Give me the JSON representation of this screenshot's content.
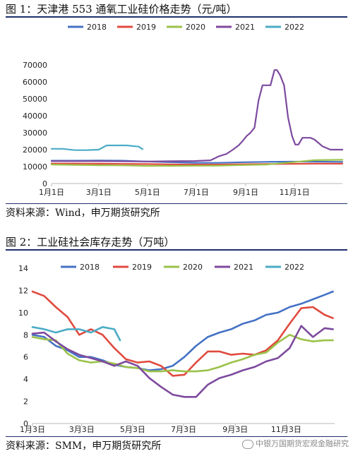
{
  "figure1": {
    "title": "图 1：天津港 553 通氧工业硅价格走势（元/吨）",
    "source": "资料来源：Wind，申万期货研究所"
  },
  "figure2": {
    "title": "图 2：工业硅社会库存走势（万吨）",
    "source": "资料来源：SMM，申万期货研究所"
  },
  "watermark": "中银万国期货宏观金融研究",
  "colors": {
    "2018": "#4472c4",
    "2019": "#e04a3f",
    "2020": "#9bc24a",
    "2021": "#7d4a9e",
    "2022": "#4bacc6",
    "rule": "#1f2f6e"
  },
  "chart_data": [
    {
      "type": "line",
      "title": "",
      "xlabel": "",
      "ylabel": "",
      "ylim": [
        0,
        80000
      ],
      "yticks": [
        0,
        10000,
        20000,
        30000,
        40000,
        50000,
        60000,
        70000
      ],
      "xlim": [
        1,
        365
      ],
      "xticks": [
        {
          "label": "1月1日",
          "x": 1
        },
        {
          "label": "3月1日",
          "x": 60
        },
        {
          "label": "5月1日",
          "x": 121
        },
        {
          "label": "7月1日",
          "x": 182
        },
        {
          "label": "9月1日",
          "x": 244
        },
        {
          "label": "11月1日",
          "x": 305
        }
      ],
      "grid": false,
      "legend": "top",
      "series": [
        {
          "name": "2018",
          "x": [
            1,
            30,
            60,
            90,
            120,
            150,
            180,
            210,
            240,
            270,
            300,
            330,
            365
          ],
          "y": [
            13500,
            13500,
            13600,
            13500,
            13000,
            12600,
            12200,
            12200,
            12600,
            12800,
            12900,
            12900,
            12800
          ]
        },
        {
          "name": "2019",
          "x": [
            1,
            30,
            60,
            90,
            120,
            150,
            180,
            210,
            240,
            270,
            300,
            330,
            365
          ],
          "y": [
            11800,
            11800,
            11700,
            11600,
            11500,
            11300,
            11200,
            11200,
            11400,
            11500,
            11600,
            11700,
            11700
          ]
        },
        {
          "name": "2020",
          "x": [
            1,
            30,
            60,
            90,
            120,
            150,
            180,
            210,
            240,
            270,
            300,
            330,
            365
          ],
          "y": [
            11200,
            11000,
            10800,
            10700,
            10400,
            10400,
            10500,
            10600,
            10900,
            11200,
            12400,
            13800,
            14000
          ]
        },
        {
          "name": "2021",
          "x": [
            1,
            60,
            120,
            150,
            180,
            200,
            210,
            220,
            228,
            235,
            240,
            245,
            250,
            255,
            260,
            265,
            270,
            275,
            280,
            283,
            287,
            292,
            297,
            302,
            306,
            310,
            315,
            320,
            325,
            330,
            340,
            350,
            365
          ],
          "y": [
            13200,
            13200,
            13000,
            13200,
            13300,
            13700,
            16000,
            17500,
            20000,
            22500,
            25000,
            28000,
            30000,
            33000,
            49000,
            58000,
            58000,
            58000,
            67000,
            67000,
            64000,
            58000,
            39000,
            28000,
            23000,
            23000,
            27000,
            27000,
            27000,
            26000,
            22000,
            20000,
            20000
          ]
        },
        {
          "name": "2022",
          "x": [
            1,
            15,
            30,
            45,
            60,
            70,
            80,
            95,
            110,
            115
          ],
          "y": [
            20500,
            20500,
            19700,
            19700,
            20000,
            22500,
            22500,
            22500,
            21800,
            20300
          ]
        }
      ]
    },
    {
      "type": "line",
      "title": "",
      "xlabel": "",
      "ylabel": "",
      "ylim": [
        0,
        14
      ],
      "yticks": [
        0,
        2,
        4,
        6,
        8,
        10,
        12,
        14
      ],
      "xlim": [
        3,
        365
      ],
      "xticks": [
        {
          "label": "1月3日",
          "x": 3
        },
        {
          "label": "3月3日",
          "x": 62
        },
        {
          "label": "5月3日",
          "x": 123
        },
        {
          "label": "7月3日",
          "x": 184
        },
        {
          "label": "9月3日",
          "x": 246
        },
        {
          "label": "11月3日",
          "x": 307
        }
      ],
      "grid": false,
      "legend": "top",
      "series": [
        {
          "name": "2018",
          "x": [
            3,
            17,
            31,
            45,
            59,
            73,
            87,
            101,
            115,
            129,
            143,
            157,
            171,
            185,
            199,
            213,
            227,
            241,
            255,
            269,
            283,
            297,
            311,
            325,
            339,
            353,
            363
          ],
          "y": [
            8.0,
            7.8,
            7.0,
            6.6,
            6.0,
            6.0,
            5.7,
            5.3,
            5.1,
            5.0,
            4.8,
            4.9,
            5.2,
            6.0,
            7.0,
            7.8,
            8.2,
            8.5,
            9.0,
            9.3,
            9.8,
            10.0,
            10.5,
            10.8,
            11.2,
            11.6,
            11.9
          ]
        },
        {
          "name": "2019",
          "x": [
            3,
            17,
            31,
            45,
            59,
            73,
            87,
            101,
            115,
            129,
            143,
            157,
            171,
            185,
            199,
            213,
            227,
            241,
            255,
            269,
            283,
            297,
            311,
            325,
            339,
            353,
            363
          ],
          "y": [
            11.9,
            11.5,
            10.5,
            9.6,
            8.0,
            8.5,
            8.0,
            6.8,
            5.8,
            5.5,
            5.6,
            5.2,
            4.3,
            4.4,
            5.5,
            6.5,
            6.5,
            6.2,
            6.3,
            6.2,
            6.6,
            7.5,
            9.0,
            10.4,
            10.5,
            9.8,
            9.5
          ]
        },
        {
          "name": "2020",
          "x": [
            3,
            17,
            31,
            45,
            59,
            73,
            87,
            101,
            115,
            129,
            143,
            157,
            171,
            185,
            199,
            213,
            227,
            241,
            255,
            269,
            283,
            297,
            311,
            325,
            339,
            353,
            363
          ],
          "y": [
            7.8,
            7.6,
            7.5,
            6.3,
            5.7,
            5.5,
            5.6,
            5.4,
            5.1,
            5.0,
            4.7,
            4.7,
            4.8,
            4.7,
            4.7,
            4.8,
            5.1,
            5.5,
            5.8,
            6.2,
            6.4,
            7.3,
            8.0,
            7.6,
            7.4,
            7.5,
            7.5
          ]
        },
        {
          "name": "2021",
          "x": [
            3,
            17,
            31,
            45,
            59,
            73,
            87,
            101,
            115,
            129,
            143,
            157,
            171,
            185,
            199,
            213,
            227,
            241,
            255,
            269,
            283,
            297,
            311,
            325,
            339,
            353,
            363
          ],
          "y": [
            8.1,
            8.2,
            7.4,
            6.7,
            6.2,
            5.9,
            5.6,
            5.2,
            5.6,
            5.2,
            4.1,
            3.3,
            2.6,
            2.4,
            2.4,
            3.5,
            4.1,
            4.4,
            4.8,
            5.1,
            5.6,
            5.9,
            6.8,
            8.8,
            7.8,
            8.6,
            8.5
          ]
        },
        {
          "name": "2022",
          "x": [
            3,
            17,
            31,
            45,
            59,
            73,
            87,
            101,
            108
          ],
          "y": [
            8.7,
            8.5,
            8.2,
            8.5,
            8.5,
            8.2,
            8.7,
            8.5,
            7.5
          ]
        }
      ]
    }
  ]
}
